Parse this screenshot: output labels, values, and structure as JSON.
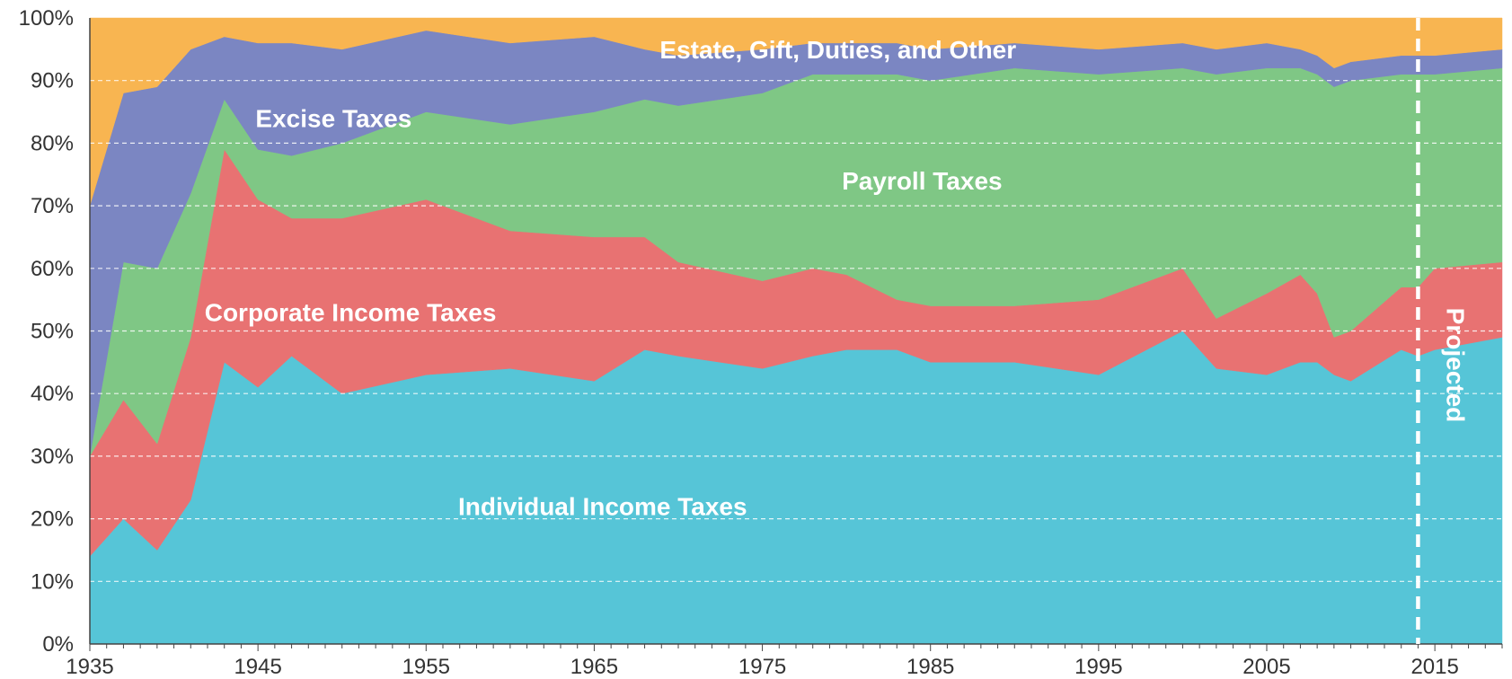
{
  "chart_data": {
    "type": "area",
    "stacked": true,
    "percent": true,
    "title": "",
    "xlabel": "",
    "ylabel": "",
    "xlim": [
      1935,
      2019
    ],
    "ylim": [
      0,
      100
    ],
    "y_ticks": [
      0,
      10,
      20,
      30,
      40,
      50,
      60,
      70,
      80,
      90,
      100
    ],
    "y_tick_labels": [
      "0%",
      "10%",
      "20%",
      "30%",
      "40%",
      "50%",
      "60%",
      "70%",
      "80%",
      "90%",
      "100%"
    ],
    "x_ticks": [
      1935,
      1945,
      1955,
      1965,
      1975,
      1985,
      1995,
      2005,
      2015
    ],
    "x_tick_labels": [
      "1935",
      "1945",
      "1955",
      "1965",
      "1975",
      "1985",
      "1995",
      "2005",
      "2015"
    ],
    "grid": "horizontal dashed",
    "projection_start": 2014,
    "projection_label": "Projected",
    "x": [
      1935,
      1937,
      1939,
      1941,
      1943,
      1945,
      1947,
      1950,
      1955,
      1960,
      1965,
      1968,
      1970,
      1975,
      1978,
      1980,
      1983,
      1985,
      1990,
      1995,
      2000,
      2002,
      2005,
      2007,
      2008,
      2009,
      2010,
      2013,
      2014,
      2015,
      2019
    ],
    "series": [
      {
        "name": "Individual Income Taxes",
        "color": "#56c5d7",
        "values": [
          14,
          20,
          15,
          23,
          45,
          41,
          46,
          40,
          43,
          44,
          42,
          47,
          46,
          44,
          46,
          47,
          47,
          45,
          45,
          43,
          50,
          44,
          43,
          45,
          45,
          43,
          42,
          47,
          46,
          47,
          49
        ]
      },
      {
        "name": "Corporate Income Taxes",
        "color": "#e87272",
        "values": [
          16,
          19,
          17,
          26,
          34,
          30,
          22,
          28,
          28,
          22,
          23,
          18,
          15,
          14,
          14,
          12,
          8,
          9,
          9,
          12,
          10,
          8,
          13,
          14,
          11,
          6,
          8,
          10,
          11,
          13,
          12
        ]
      },
      {
        "name": "Payroll Taxes",
        "color": "#7fc785",
        "values": [
          0,
          22,
          28,
          23,
          8,
          8,
          10,
          12,
          14,
          17,
          20,
          22,
          25,
          30,
          31,
          32,
          36,
          36,
          38,
          36,
          32,
          39,
          36,
          33,
          35,
          40,
          40,
          34,
          34,
          31,
          31
        ]
      },
      {
        "name": "Excise Taxes",
        "color": "#7b86c2",
        "values": [
          40,
          27,
          29,
          23,
          10,
          17,
          18,
          15,
          13,
          13,
          12,
          8,
          8,
          7,
          5,
          5,
          5,
          5,
          4,
          4,
          4,
          4,
          4,
          3,
          3,
          3,
          3,
          3,
          3,
          3,
          3
        ]
      },
      {
        "name": "Estate, Gift, Duties, and Other",
        "color": "#f8b551",
        "values": [
          30,
          12,
          11,
          5,
          3,
          4,
          4,
          5,
          2,
          4,
          3,
          5,
          6,
          5,
          4,
          4,
          4,
          5,
          4,
          5,
          4,
          5,
          4,
          5,
          6,
          8,
          7,
          6,
          6,
          6,
          5
        ]
      }
    ]
  }
}
